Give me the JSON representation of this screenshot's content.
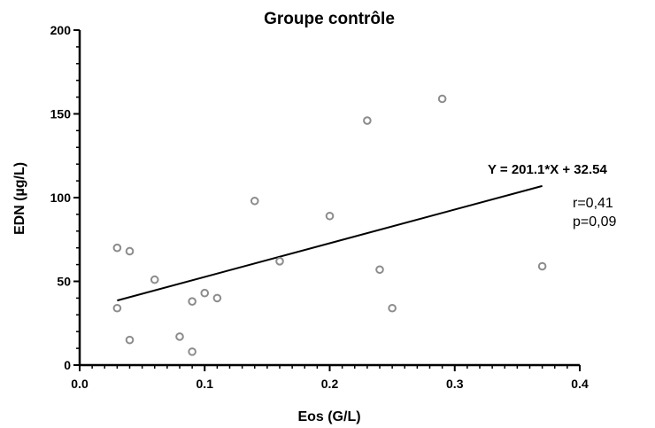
{
  "chart_data": {
    "type": "scatter",
    "title": "Groupe contrôle",
    "xlabel": "Eos (G/L)",
    "ylabel": "EDN (µg/L)",
    "xlim": [
      0,
      0.4
    ],
    "ylim": [
      0,
      200
    ],
    "x_ticks": [
      0.0,
      0.1,
      0.2,
      0.3,
      0.4
    ],
    "x_tick_labels": [
      "0.0",
      "0.1",
      "0.2",
      "0.3",
      "0.4"
    ],
    "y_ticks": [
      0,
      50,
      100,
      150,
      200
    ],
    "y_tick_labels": [
      "0",
      "50",
      "100",
      "150",
      "200"
    ],
    "grid": false,
    "series": [
      {
        "points": [
          {
            "x": 0.03,
            "y": 70
          },
          {
            "x": 0.03,
            "y": 34
          },
          {
            "x": 0.04,
            "y": 68
          },
          {
            "x": 0.04,
            "y": 15
          },
          {
            "x": 0.06,
            "y": 51
          },
          {
            "x": 0.08,
            "y": 17
          },
          {
            "x": 0.09,
            "y": 38
          },
          {
            "x": 0.09,
            "y": 8
          },
          {
            "x": 0.1,
            "y": 43
          },
          {
            "x": 0.11,
            "y": 40
          },
          {
            "x": 0.14,
            "y": 98
          },
          {
            "x": 0.16,
            "y": 62
          },
          {
            "x": 0.2,
            "y": 89
          },
          {
            "x": 0.23,
            "y": 146
          },
          {
            "x": 0.24,
            "y": 57
          },
          {
            "x": 0.25,
            "y": 34
          },
          {
            "x": 0.29,
            "y": 159
          },
          {
            "x": 0.37,
            "y": 59
          }
        ]
      }
    ],
    "regression": {
      "slope": 201.1,
      "intercept": 32.54,
      "x_range": [
        0.03,
        0.37
      ],
      "equation_label": "Y = 201.1*X + 32.54",
      "r_label": "r=0,41",
      "p_label": "p=0,09"
    },
    "colors": {
      "marker_stroke": "#8c8c8c",
      "marker_fill": "#ffffff",
      "line": "#000000"
    }
  }
}
